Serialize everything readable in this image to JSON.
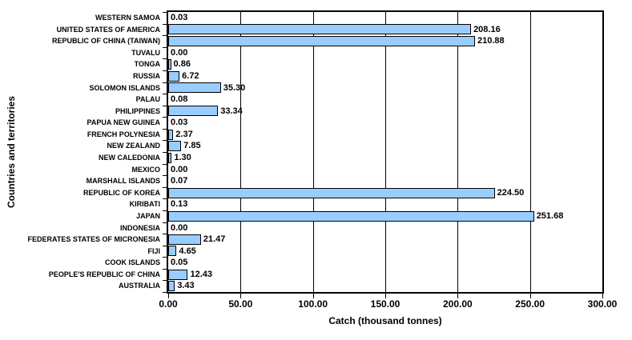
{
  "chart_data": {
    "type": "bar",
    "orientation": "horizontal",
    "title": "",
    "xlabel": "Catch (thousand tonnes)",
    "ylabel": "Countries and territories",
    "xlim": [
      0,
      300
    ],
    "grid": true,
    "x_tick_values": [
      0,
      50,
      100,
      150,
      200,
      250,
      300
    ],
    "x_tick_labels": [
      "0.00",
      "50.00",
      "100.00",
      "150.00",
      "200.00",
      "250.00",
      "300.00"
    ],
    "categories": [
      "WESTERN SAMOA",
      "UNITED STATES OF AMERICA",
      "REPUBLIC OF CHINA (TAIWAN)",
      "TUVALU",
      "TONGA",
      "RUSSIA",
      "SOLOMON ISLANDS",
      "PALAU",
      "PHILIPPINES",
      "PAPUA NEW GUINEA",
      "FRENCH POLYNESIA",
      "NEW ZEALAND",
      "NEW CALEDONIA",
      "MEXICO",
      "MARSHALL ISLANDS",
      "REPUBLIC OF KOREA",
      "KIRIBATI",
      "JAPAN",
      "INDONESIA",
      "FEDERATES STATES OF MICRONESIA",
      "FIJI",
      "COOK ISLANDS",
      "PEOPLE'S REPUBLIC OF CHINA",
      "AUSTRALIA"
    ],
    "values": [
      0.03,
      208.16,
      210.88,
      0.0,
      0.86,
      6.72,
      35.3,
      0.08,
      33.34,
      0.03,
      2.37,
      7.85,
      1.3,
      0.0,
      0.07,
      224.5,
      0.13,
      251.68,
      0.0,
      21.47,
      4.65,
      0.05,
      12.43,
      3.43
    ],
    "value_labels": [
      "0.03",
      "208.16",
      "210.88",
      "0.00",
      "0.86",
      "6.72",
      "35.30",
      "0.08",
      "33.34",
      "0.03",
      "2.37",
      "7.85",
      "1.30",
      "0.00",
      "0.07",
      "224.50",
      "0.13",
      "251.68",
      "0.00",
      "21.47",
      "4.65",
      "0.05",
      "12.43",
      "3.43"
    ],
    "colors": {
      "bar_fill": "#99CCFF",
      "bar_border": "#000000",
      "gridline": "#000000",
      "axis": "#000000",
      "text": "#000000",
      "background": "#FFFFFF"
    },
    "legend": "none"
  }
}
